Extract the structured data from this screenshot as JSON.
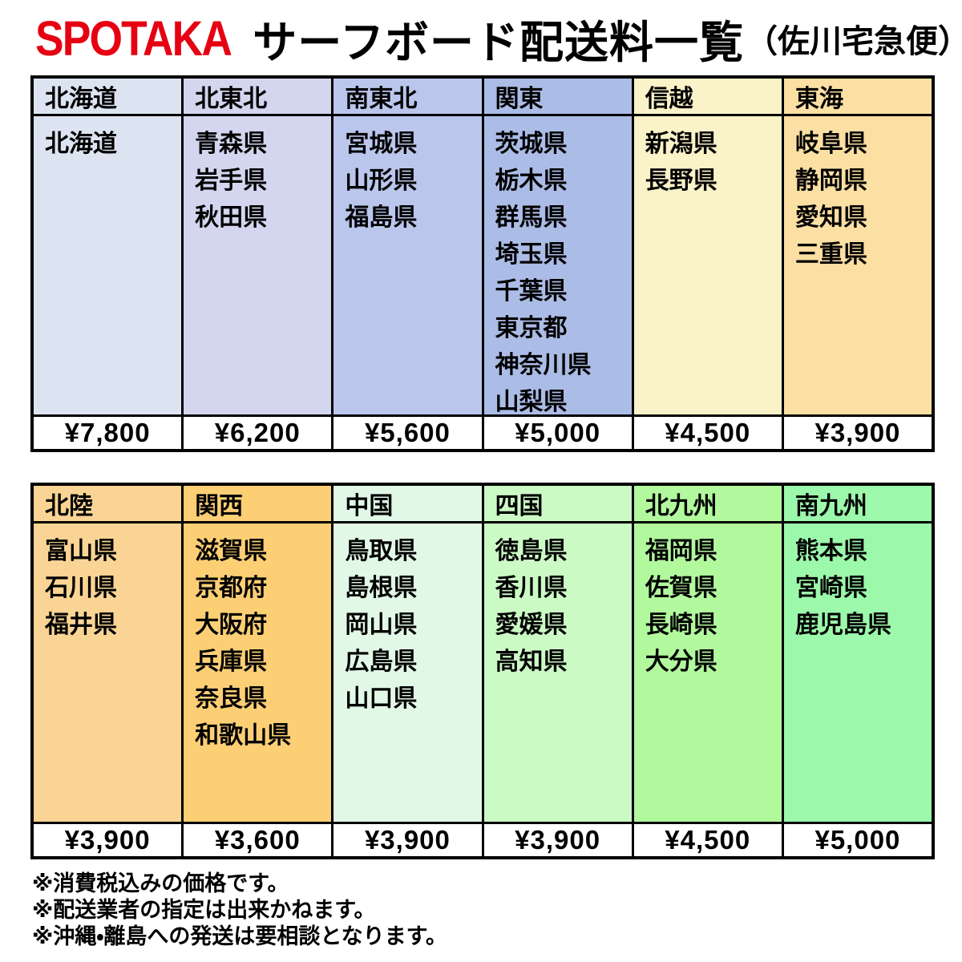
{
  "title": {
    "brand": "SPOTAKA",
    "brand_color": "#e60012",
    "main": "サーフボード配送料一覧",
    "sub": "（佐川宅急便）"
  },
  "tables": [
    {
      "name": "east-japan",
      "columns": [
        {
          "region": "北海道",
          "color": "#dde4f1",
          "prefectures": [
            "北海道"
          ],
          "price": "¥7,800"
        },
        {
          "region": "北東北",
          "color": "#d4d5ee",
          "prefectures": [
            "青森県",
            "岩手県",
            "秋田県"
          ],
          "price": "¥6,200"
        },
        {
          "region": "南東北",
          "color": "#bac6ec",
          "prefectures": [
            "宮城県",
            "山形県",
            "福島県"
          ],
          "price": "¥5,600"
        },
        {
          "region": "関東",
          "color": "#abbce6",
          "prefectures": [
            "茨城県",
            "栃木県",
            "群馬県",
            "埼玉県",
            "千葉県",
            "東京都",
            "神奈川県",
            "山梨県"
          ],
          "price": "¥5,000"
        },
        {
          "region": "信越",
          "color": "#faf2c8",
          "prefectures": [
            "新潟県",
            "長野県"
          ],
          "price": "¥4,500"
        },
        {
          "region": "東海",
          "color": "#fbdfa3",
          "prefectures": [
            "岐阜県",
            "静岡県",
            "愛知県",
            "三重県"
          ],
          "price": "¥3,900"
        }
      ]
    },
    {
      "name": "west-japan",
      "columns": [
        {
          "region": "北陸",
          "color": "#fad494",
          "prefectures": [
            "富山県",
            "石川県",
            "福井県"
          ],
          "price": "¥3,900"
        },
        {
          "region": "関西",
          "color": "#fccf75",
          "prefectures": [
            "滋賀県",
            "京都府",
            "大阪府",
            "兵庫県",
            "奈良県",
            "和歌山県"
          ],
          "price": "¥3,600"
        },
        {
          "region": "中国",
          "color": "#e2f8e6",
          "prefectures": [
            "鳥取県",
            "島根県",
            "岡山県",
            "広島県",
            "山口県"
          ],
          "price": "¥3,900"
        },
        {
          "region": "四国",
          "color": "#ccfac5",
          "prefectures": [
            "徳島県",
            "香川県",
            "愛媛県",
            "高知県"
          ],
          "price": "¥3,900"
        },
        {
          "region": "北九州",
          "color": "#b2f99e",
          "prefectures": [
            "福岡県",
            "佐賀県",
            "長崎県",
            "大分県"
          ],
          "price": "¥4,500"
        },
        {
          "region": "南九州",
          "color": "#9cf8ab",
          "prefectures": [
            "熊本県",
            "宮崎県",
            "鹿児島県"
          ],
          "price": "¥5,000"
        }
      ]
    }
  ],
  "notes": [
    "※消費税込みの価格です。",
    "※配送業者の指定は出来かねます。",
    "※沖縄・離島への発送は要相談となります。"
  ]
}
